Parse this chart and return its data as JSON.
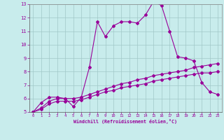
{
  "bg_color": "#c8ecec",
  "line_color": "#990099",
  "grid_color": "#a0c8c8",
  "xlim": [
    -0.5,
    23.5
  ],
  "ylim": [
    5,
    13
  ],
  "xticks": [
    0,
    1,
    2,
    3,
    4,
    5,
    6,
    7,
    8,
    9,
    10,
    11,
    12,
    13,
    14,
    15,
    16,
    17,
    18,
    19,
    20,
    21,
    22,
    23
  ],
  "yticks": [
    5,
    6,
    7,
    8,
    9,
    10,
    11,
    12,
    13
  ],
  "xlabel": "Windchill (Refroidissement éolien,°C)",
  "series1_x": [
    0,
    1,
    2,
    3,
    4,
    5,
    6,
    7,
    8,
    9,
    10,
    11,
    12,
    13,
    14,
    15,
    16,
    17,
    18,
    19,
    20,
    21,
    22,
    23
  ],
  "series1_y": [
    5.0,
    5.7,
    6.1,
    6.1,
    6.0,
    5.4,
    6.1,
    8.3,
    11.7,
    10.6,
    11.4,
    11.7,
    11.7,
    11.6,
    12.2,
    13.2,
    12.9,
    11.0,
    9.1,
    9.0,
    8.8,
    7.2,
    6.5,
    6.3
  ],
  "series2_x": [
    0,
    1,
    2,
    3,
    4,
    5,
    6,
    7,
    8,
    9,
    10,
    11,
    12,
    13,
    14,
    15,
    16,
    17,
    18,
    19,
    20,
    21,
    22,
    23
  ],
  "series2_y": [
    5.0,
    5.3,
    5.8,
    6.0,
    6.0,
    6.0,
    6.1,
    6.3,
    6.5,
    6.7,
    6.9,
    7.1,
    7.2,
    7.4,
    7.5,
    7.7,
    7.8,
    7.9,
    8.0,
    8.1,
    8.3,
    8.4,
    8.5,
    8.6
  ],
  "series3_x": [
    0,
    1,
    2,
    3,
    4,
    5,
    6,
    7,
    8,
    9,
    10,
    11,
    12,
    13,
    14,
    15,
    16,
    17,
    18,
    19,
    20,
    21,
    22,
    23
  ],
  "series3_y": [
    5.0,
    5.2,
    5.6,
    5.8,
    5.8,
    5.8,
    5.9,
    6.1,
    6.3,
    6.5,
    6.6,
    6.8,
    6.9,
    7.0,
    7.1,
    7.3,
    7.4,
    7.5,
    7.6,
    7.7,
    7.8,
    7.9,
    7.9,
    8.0
  ]
}
